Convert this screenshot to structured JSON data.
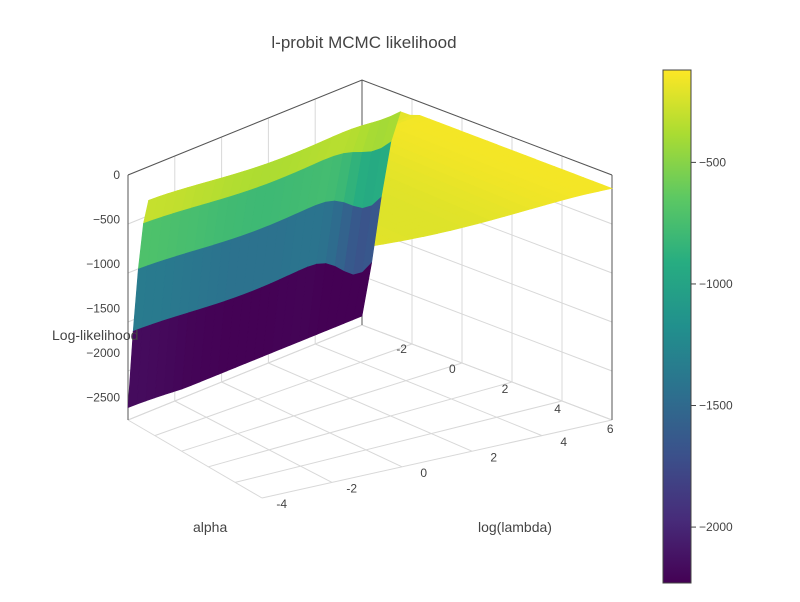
{
  "chart_data": {
    "type": "surface",
    "title": "l-probit MCMC likelihood",
    "colorscale": "viridis",
    "colorscale_stops": [
      "#440154",
      "#472c7a",
      "#3b518b",
      "#2c718e",
      "#21908d",
      "#27ad81",
      "#5cc863",
      "#aadc32",
      "#fde725"
    ],
    "axes": {
      "x": {
        "title": "alpha",
        "ticks": [
          "-4",
          "-2",
          "0",
          "2",
          "4"
        ],
        "range": [
          -5,
          5
        ]
      },
      "y": {
        "title": "log(lambda)",
        "ticks": [
          "-2",
          "0",
          "2",
          "4",
          "6"
        ],
        "range": [
          -3,
          6.5
        ]
      },
      "z": {
        "title": "Log-likelihood",
        "ticks": [
          "0",
          "−500",
          "−1000",
          "−1500",
          "−2000",
          "−2500"
        ],
        "range": [
          -2750,
          0
        ]
      }
    },
    "surface": {
      "x_range": [
        -5,
        5
      ],
      "y_range": [
        -3,
        6.5
      ],
      "z_min": -2650,
      "z_max": -150,
      "shape": "plateau near -180 with steep drop to about -2650 at low log(lambda) and a smaller well at alpha=5, log(lambda)=-3"
    },
    "colorbar": {
      "ticks": [
        "−500",
        "−1000",
        "−1500",
        "−2000"
      ],
      "tick_values": [
        -500,
        -1000,
        -1500,
        -2000
      ],
      "min": -2230,
      "max": -120
    }
  }
}
